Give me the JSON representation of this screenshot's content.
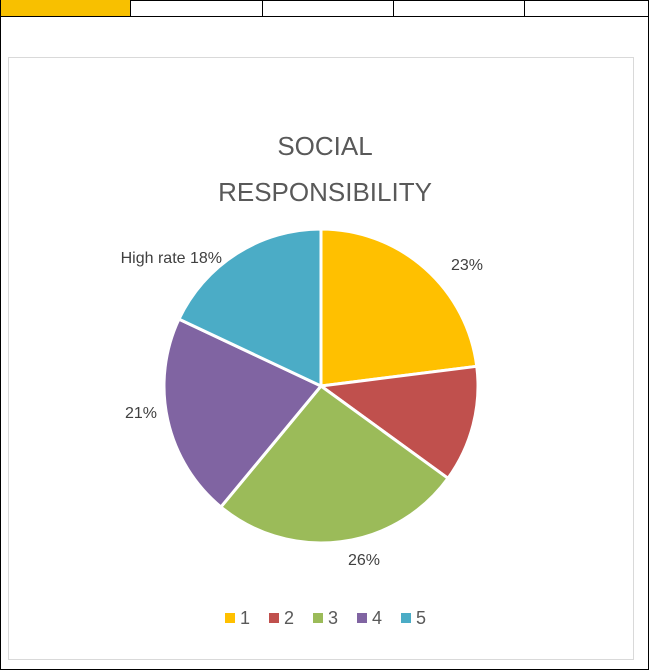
{
  "chart_data": {
    "type": "pie",
    "title_lines": [
      "SOCIAL",
      "RESPONSIBILITY"
    ],
    "categories": [
      "1",
      "2",
      "3",
      "4",
      "5"
    ],
    "values": [
      23,
      12,
      26,
      21,
      18
    ],
    "colors": [
      "#ffc000",
      "#c0504d",
      "#9bbb59",
      "#8064a2",
      "#4bacc6"
    ],
    "slice_labels": [
      "23%",
      "",
      "26%",
      "21%",
      "High rate 18%"
    ],
    "legend_position": "bottom",
    "start_angle_deg": 0,
    "direction": "clockwise"
  }
}
